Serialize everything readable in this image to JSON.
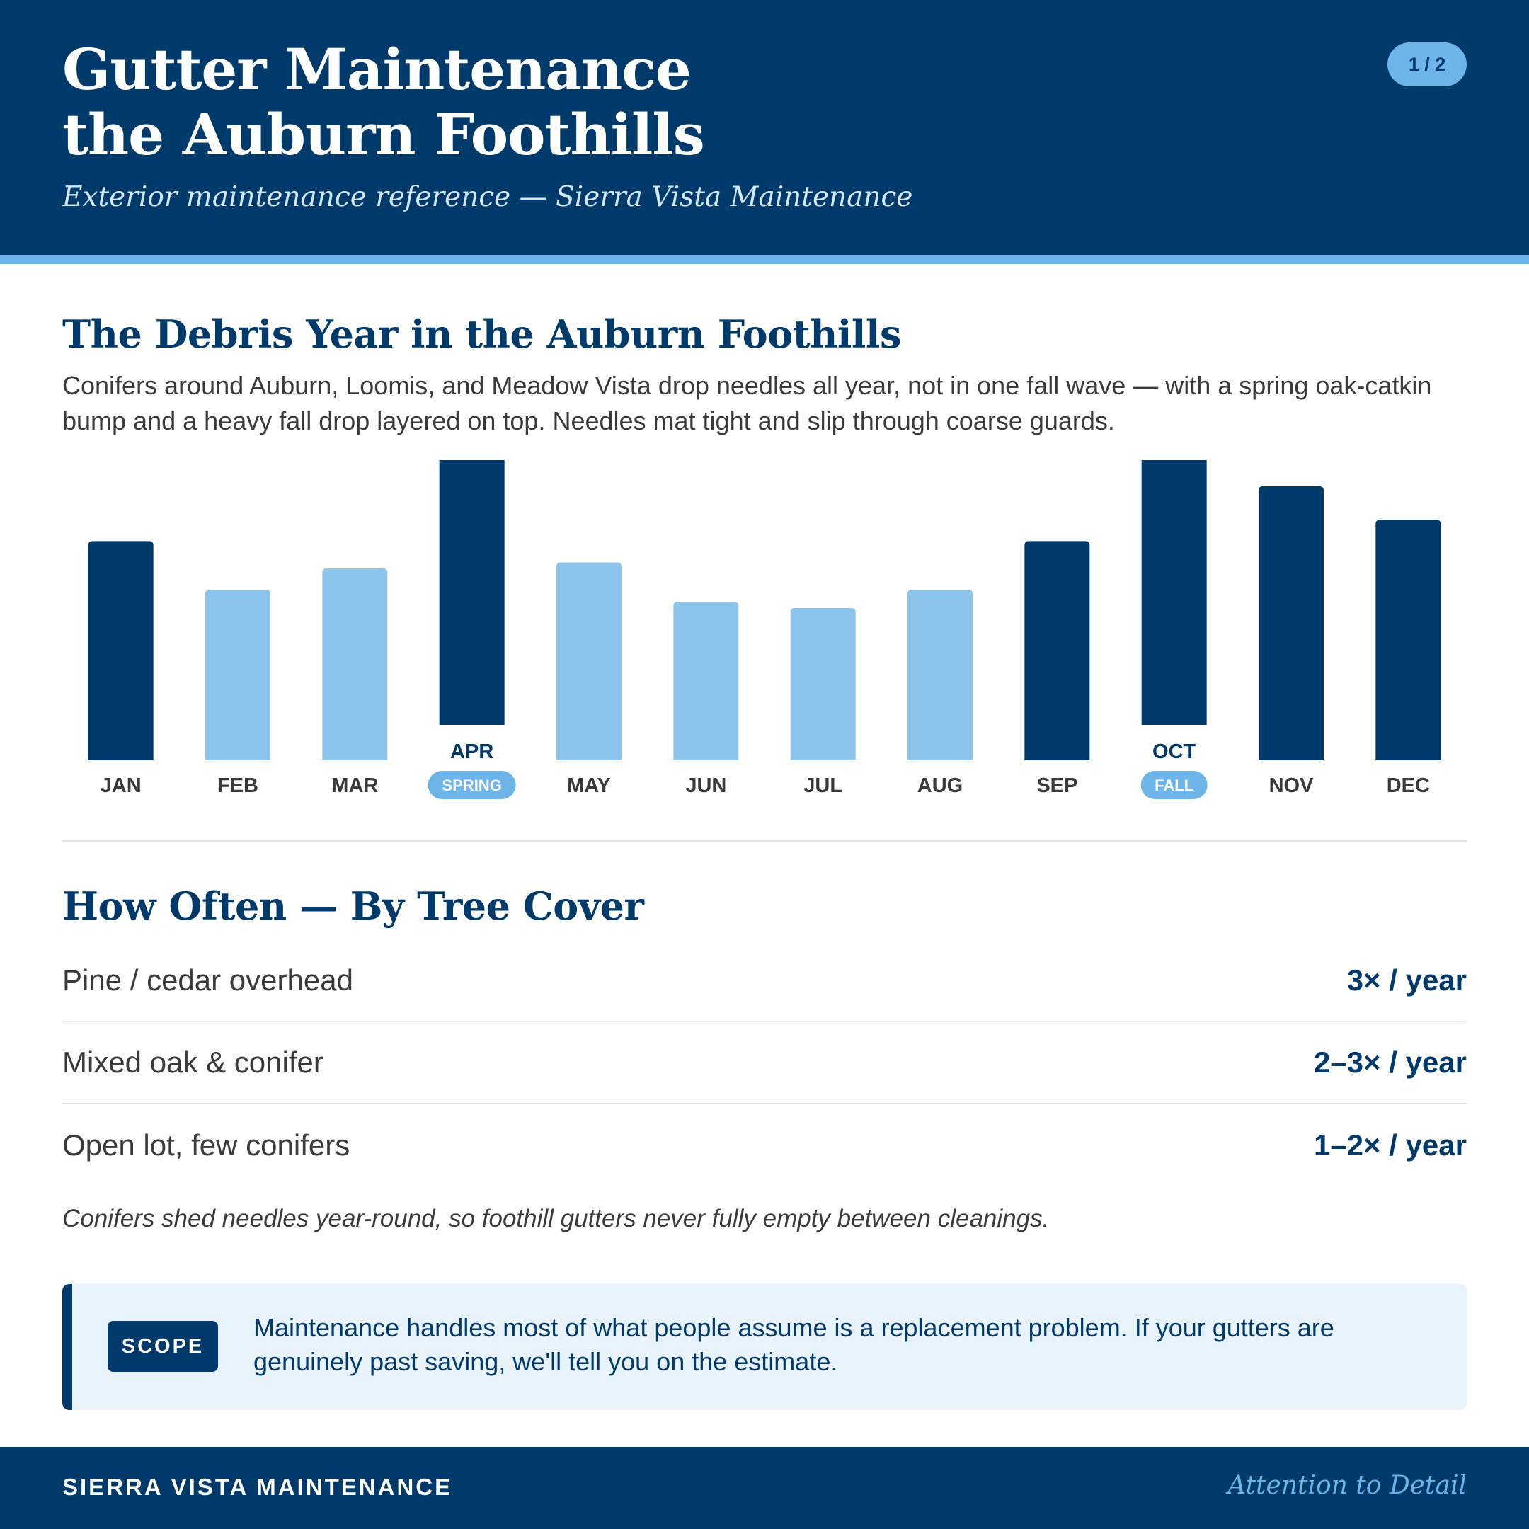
{
  "header": {
    "title_line1": "Gutter Maintenance",
    "title_line2": "the Auburn Foothills",
    "subtitle": "Exterior maintenance reference — Sierra Vista Maintenance",
    "page_indicator": "1 / 2"
  },
  "debris": {
    "heading": "The Debris Year in the Auburn Foothills",
    "intro": "Conifers around Auburn, Loomis, and Meadow Vista drop needles all year, not in one fall wave — with a spring oak-catkin bump and a heavy fall drop layered on top. Needles mat tight and slip through coarse guards."
  },
  "chart_data": {
    "type": "bar",
    "categories": [
      "JAN",
      "FEB",
      "MAR",
      "APR",
      "MAY",
      "JUN",
      "JUL",
      "AUG",
      "SEP",
      "OCT",
      "NOV",
      "DEC"
    ],
    "values": [
      72,
      56,
      63,
      93,
      65,
      52,
      50,
      56,
      72,
      94,
      90,
      79
    ],
    "emphasis": [
      true,
      false,
      false,
      true,
      false,
      false,
      false,
      false,
      true,
      true,
      true,
      true
    ],
    "tags": {
      "APR": "SPRING",
      "OCT": "FALL"
    },
    "ylim": [
      0,
      100
    ],
    "grid": false,
    "colors": {
      "heavy": "#003a6b",
      "light": "#8dc4ec",
      "tag": "#6db5e9"
    }
  },
  "frequency": {
    "heading": "How Often — By Tree Cover",
    "rows": [
      {
        "label": "Pine / cedar overhead",
        "value": "3× / year"
      },
      {
        "label": "Mixed oak & conifer",
        "value": "2–3× / year"
      },
      {
        "label": "Open lot, few conifers",
        "value": "1–2× / year"
      }
    ],
    "note": "Conifers shed needles year-round, so foothill gutters never fully empty between cleanings."
  },
  "scope": {
    "badge": "SCOPE",
    "text": "Maintenance handles most of what people assume is a replacement problem. If your gutters are genuinely past saving, we'll tell you on the estimate."
  },
  "footer": {
    "brand": "SIERRA VISTA MAINTENANCE",
    "tagline": "Attention to Detail"
  },
  "colors": {
    "navy": "#003a6b",
    "sky": "#6db5e9",
    "pale": "#e8f2fb"
  }
}
